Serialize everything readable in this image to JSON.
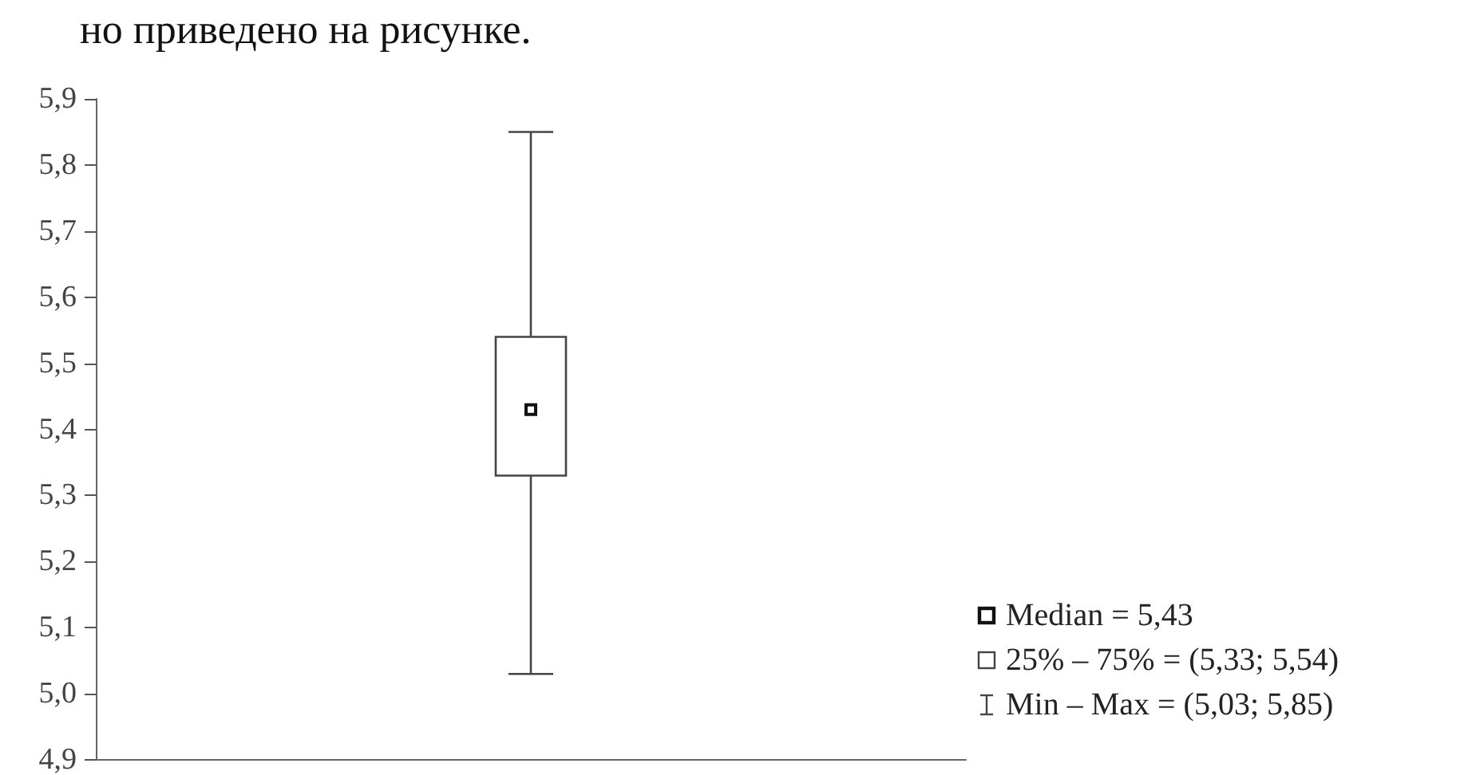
{
  "chart_data": {
    "type": "box",
    "categories": [
      null
    ],
    "color": "#444444",
    "boxes": [
      {
        "low": 5.03,
        "q1": 5.33,
        "median": 5.43,
        "q3": 5.54,
        "high": 5.85
      }
    ],
    "ylim": [
      4.9,
      5.9
    ],
    "yticks": [
      {
        "value": 4.9,
        "label": "4,9"
      },
      {
        "value": 5.0,
        "label": "5,0"
      },
      {
        "value": 5.1,
        "label": "5,1"
      },
      {
        "value": 5.2,
        "label": "5,2"
      },
      {
        "value": 5.3,
        "label": "5,3"
      },
      {
        "value": 5.4,
        "label": "5,4"
      },
      {
        "value": 5.5,
        "label": "5,5"
      },
      {
        "value": 5.6,
        "label": "5,6"
      },
      {
        "value": 5.7,
        "label": "5,7"
      },
      {
        "value": 5.8,
        "label": "5,8"
      },
      {
        "value": 5.9,
        "label": "5,9"
      }
    ],
    "grid": false,
    "annotations": [
      "но приведено на рисунке.",
      "Median = 5,43",
      "25% – 75% = (5,33; 5,54)",
      "Min – Max = (5,03; 5,85)"
    ]
  }
}
